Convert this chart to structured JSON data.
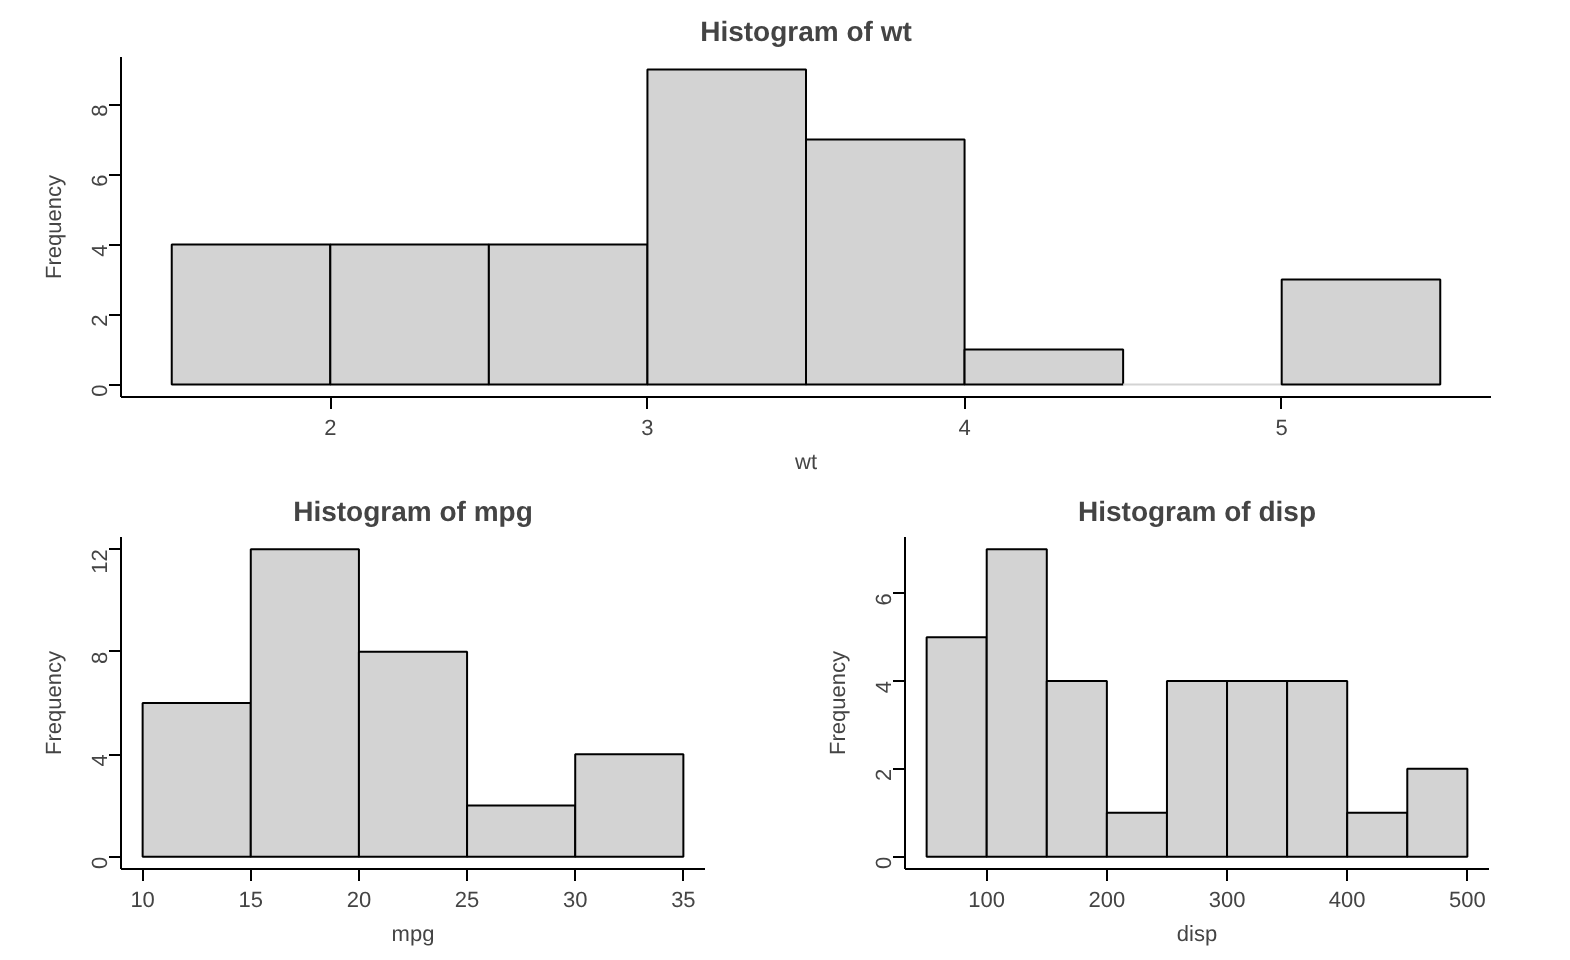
{
  "chart_data": [
    {
      "type": "histogram",
      "title": "Histogram of wt",
      "xlabel": "wt",
      "ylabel": "Frequency",
      "bins": [
        1.5,
        2,
        2.5,
        3,
        3.5,
        4,
        4.5,
        5,
        5.5
      ],
      "values": [
        4,
        4,
        4,
        9,
        7,
        1,
        0,
        3
      ],
      "color": "#d3d3d3",
      "xlim": [
        1.34,
        5.66
      ],
      "ylim": [
        -0.36,
        9.36
      ],
      "xticks": [
        2,
        3,
        4,
        5
      ],
      "yticks": [
        0,
        2,
        4,
        6,
        8
      ]
    },
    {
      "type": "histogram",
      "title": "Histogram of mpg",
      "xlabel": "mpg",
      "ylabel": "Frequency",
      "bins": [
        10,
        15,
        20,
        25,
        30,
        35
      ],
      "values": [
        6,
        12,
        8,
        2,
        4
      ],
      "color": "#d3d3d3",
      "xlim": [
        9,
        36
      ],
      "ylim": [
        -0.48,
        12.48
      ],
      "xticks": [
        10,
        15,
        20,
        25,
        30,
        35
      ],
      "yticks": [
        0,
        4,
        8,
        12
      ]
    },
    {
      "type": "histogram",
      "title": "Histogram of disp",
      "xlabel": "disp",
      "ylabel": "Frequency",
      "bins": [
        50,
        100,
        150,
        200,
        250,
        300,
        350,
        400,
        450,
        500
      ],
      "values": [
        5,
        7,
        4,
        1,
        4,
        4,
        4,
        1,
        2
      ],
      "color": "#d3d3d3",
      "xlim": [
        32,
        518
      ],
      "ylim": [
        -0.28,
        7.28
      ],
      "xticks": [
        100,
        200,
        300,
        400,
        500
      ],
      "yticks": [
        0,
        2,
        4,
        6
      ]
    }
  ]
}
